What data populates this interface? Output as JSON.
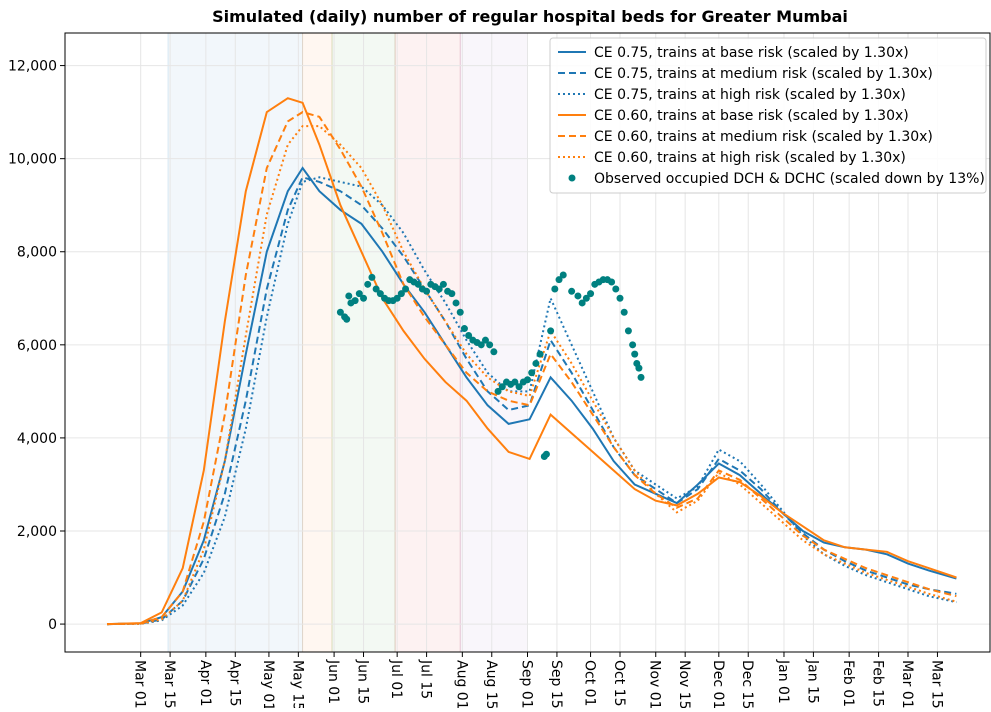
{
  "chart_data": {
    "type": "line",
    "title": "Simulated (daily) number of regular hospital beds for Greater Mumbai",
    "xlim": [
      -36,
      404
    ],
    "ylim": [
      -600,
      12700
    ],
    "grid": true,
    "legend": "upper right",
    "xticks": [
      {
        "value": 0,
        "label": "Mar 01"
      },
      {
        "value": 14,
        "label": "Mar 15"
      },
      {
        "value": 31,
        "label": "Apr 01"
      },
      {
        "value": 45,
        "label": "Apr 15"
      },
      {
        "value": 61,
        "label": "May 01"
      },
      {
        "value": 75,
        "label": "May 15"
      },
      {
        "value": 92,
        "label": "Jun 01"
      },
      {
        "value": 106,
        "label": "Jun 15"
      },
      {
        "value": 122,
        "label": "Jul 01"
      },
      {
        "value": 136,
        "label": "Jul 15"
      },
      {
        "value": 153,
        "label": "Aug 01"
      },
      {
        "value": 167,
        "label": "Aug 15"
      },
      {
        "value": 184,
        "label": "Sep 01"
      },
      {
        "value": 198,
        "label": "Sep 15"
      },
      {
        "value": 214,
        "label": "Oct 01"
      },
      {
        "value": 228,
        "label": "Oct 15"
      },
      {
        "value": 245,
        "label": "Nov 01"
      },
      {
        "value": 259,
        "label": "Nov 15"
      },
      {
        "value": 275,
        "label": "Dec 01"
      },
      {
        "value": 289,
        "label": "Dec 15"
      },
      {
        "value": 306,
        "label": "Jan 01"
      },
      {
        "value": 320,
        "label": "Jan 15"
      },
      {
        "value": 337,
        "label": "Feb 01"
      },
      {
        "value": 351,
        "label": "Feb 15"
      },
      {
        "value": 365,
        "label": "Mar 01"
      },
      {
        "value": 379,
        "label": "Mar 15"
      }
    ],
    "yticks": [
      0,
      {
        "value": 2000,
        "label": "2,000"
      },
      {
        "value": 4000,
        "label": "4,000"
      },
      {
        "value": 6000,
        "label": "6,000"
      },
      {
        "value": 8000,
        "label": "8,000"
      },
      {
        "value": 10000,
        "label": "10,000"
      },
      {
        "value": 12000,
        "label": "12,000"
      }
    ],
    "spans": [
      {
        "start": 13,
        "end": 77,
        "color": "#1f77b4"
      },
      {
        "start": 77,
        "end": 91,
        "color": "#ff7f0e"
      },
      {
        "start": 91,
        "end": 121,
        "color": "#2ca02c"
      },
      {
        "start": 121,
        "end": 152,
        "color": "#d62728"
      },
      {
        "start": 152,
        "end": 184,
        "color": "#9467bd"
      }
    ],
    "x": [
      -16,
      0,
      10,
      20,
      30,
      40,
      50,
      60,
      70,
      77,
      85,
      95,
      105,
      115,
      125,
      135,
      145,
      155,
      165,
      175,
      185,
      195,
      205,
      215,
      225,
      235,
      245,
      255,
      265,
      275,
      285,
      295,
      305,
      315,
      325,
      335,
      345,
      355,
      365,
      375,
      388
    ],
    "series": [
      {
        "name": "CE 0.75, trains at base risk (scaled by 1.30x)",
        "color": "#1f77b4",
        "dash": "solid",
        "values": [
          0,
          15,
          150,
          700,
          1800,
          3500,
          5800,
          8000,
          9300,
          9800,
          9300,
          8900,
          8600,
          8000,
          7300,
          6700,
          6000,
          5300,
          4700,
          4300,
          4400,
          5300,
          4800,
          4200,
          3500,
          3000,
          2800,
          2600,
          3000,
          3450,
          3200,
          2800,
          2400,
          2000,
          1750,
          1650,
          1600,
          1500,
          1300,
          1150,
          980
        ]
      },
      {
        "name": "CE 0.75, trains at medium risk (scaled by 1.30x)",
        "color": "#1f77b4",
        "dash": "dashed",
        "values": [
          0,
          10,
          100,
          500,
          1400,
          2800,
          4800,
          7200,
          8900,
          9600,
          9500,
          9300,
          9000,
          8500,
          7900,
          7200,
          6500,
          5700,
          5000,
          4600,
          4700,
          6100,
          5400,
          4600,
          3800,
          3200,
          2900,
          2600,
          2900,
          3550,
          3300,
          2900,
          2400,
          1950,
          1600,
          1350,
          1150,
          1000,
          850,
          750,
          650
        ]
      },
      {
        "name": "CE 0.75, trains at high risk (scaled by 1.30x)",
        "color": "#1f77b4",
        "dash": "dotted",
        "values": [
          0,
          5,
          80,
          400,
          1100,
          2300,
          4200,
          6600,
          8600,
          9500,
          9600,
          9500,
          9400,
          9000,
          8400,
          7600,
          6900,
          6100,
          5400,
          5000,
          5000,
          7000,
          6000,
          5000,
          4000,
          3300,
          3000,
          2700,
          2950,
          3750,
          3500,
          3000,
          2450,
          1900,
          1500,
          1250,
          1050,
          900,
          750,
          600,
          470
        ]
      },
      {
        "name": "CE 0.60, trains at base risk (scaled by 1.30x)",
        "color": "#ff7f0e",
        "dash": "solid",
        "values": [
          0,
          20,
          250,
          1200,
          3300,
          6500,
          9300,
          11000,
          11300,
          11200,
          10300,
          9000,
          8000,
          7000,
          6300,
          5700,
          5200,
          4800,
          4200,
          3700,
          3550,
          4500,
          4100,
          3700,
          3300,
          2900,
          2650,
          2550,
          2800,
          3150,
          3050,
          2750,
          2400,
          2100,
          1800,
          1650,
          1600,
          1550,
          1350,
          1200,
          1000
        ]
      },
      {
        "name": "CE 0.60, trains at medium risk (scaled by 1.30x)",
        "color": "#ff7f0e",
        "dash": "dashed",
        "values": [
          0,
          10,
          150,
          700,
          2200,
          4500,
          7500,
          9800,
          10800,
          11000,
          10900,
          10200,
          9400,
          8400,
          7300,
          6600,
          6000,
          5400,
          5000,
          4800,
          4700,
          5800,
          5200,
          4500,
          3800,
          3200,
          2800,
          2500,
          2700,
          3300,
          3100,
          2700,
          2300,
          1900,
          1600,
          1400,
          1200,
          1050,
          900,
          750,
          600
        ]
      },
      {
        "name": "CE 0.60, trains at high risk (scaled by 1.30x)",
        "color": "#ff7f0e",
        "dash": "dotted",
        "values": [
          0,
          5,
          100,
          500,
          1600,
          3500,
          6200,
          8800,
          10300,
          10700,
          10700,
          10300,
          9800,
          9000,
          8000,
          7200,
          6500,
          5800,
          5300,
          5000,
          4900,
          6300,
          5600,
          4800,
          4000,
          3300,
          2800,
          2400,
          2650,
          3250,
          3000,
          2600,
          2200,
          1800,
          1500,
          1300,
          1100,
          950,
          800,
          650,
          480
        ]
      }
    ],
    "scatter": {
      "name": "Observed occupied DCH & DCHC (scaled down by 13%)",
      "color": "#008080",
      "x": [
        95,
        97,
        98,
        99,
        100,
        102,
        104,
        106,
        108,
        110,
        112,
        114,
        116,
        118,
        120,
        122,
        124,
        126,
        128,
        130,
        132,
        134,
        136,
        138,
        140,
        142,
        144,
        146,
        148,
        150,
        152,
        154,
        156,
        158,
        160,
        162,
        164,
        166,
        168,
        170,
        172,
        174,
        176,
        178,
        180,
        182,
        184,
        186,
        188,
        190,
        192,
        193,
        195,
        197,
        199,
        201,
        205,
        208,
        210,
        212,
        214,
        216,
        218,
        220,
        222,
        224,
        226,
        228,
        230,
        232,
        234,
        235,
        236,
        237,
        238
      ],
      "values": [
        6700,
        6600,
        6550,
        7050,
        6900,
        6950,
        7100,
        7000,
        7300,
        7450,
        7200,
        7100,
        7000,
        6950,
        6950,
        7000,
        7100,
        7200,
        7400,
        7350,
        7300,
        7200,
        7150,
        7300,
        7250,
        7200,
        7300,
        7150,
        7100,
        6900,
        6700,
        6350,
        6200,
        6100,
        6050,
        6000,
        6100,
        6000,
        5850,
        5000,
        5100,
        5200,
        5150,
        5200,
        5100,
        5200,
        5250,
        5400,
        5600,
        5800,
        3600,
        3650,
        6300,
        7200,
        7400,
        7500,
        7150,
        7050,
        6900,
        7000,
        7100,
        7300,
        7350,
        7400,
        7400,
        7350,
        7200,
        7000,
        6700,
        6300,
        6000,
        5800,
        5600,
        5500,
        5300
      ]
    }
  }
}
